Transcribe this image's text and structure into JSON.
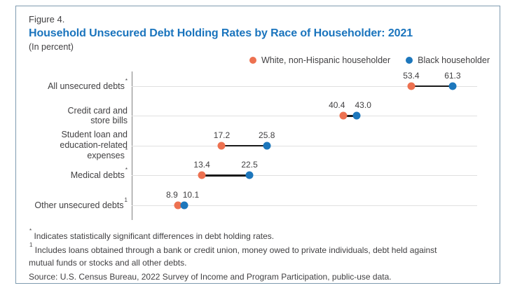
{
  "header": {
    "figure_label": "Figure 4.",
    "title": "Household Unsecured Debt Holding Rates by Race of Householder: 2021",
    "subtitle": "(In percent)"
  },
  "legend": {
    "items": [
      {
        "label": "White, non-Hispanic householder",
        "color": "#ed7150"
      },
      {
        "label": "Black householder",
        "color": "#1d77bc"
      }
    ]
  },
  "chart_data": {
    "type": "dumbbell-dot-plot",
    "title": "Household Unsecured Debt Holding Rates by Race of Householder: 2021",
    "unit": "percent",
    "xlim": [
      0,
      66
    ],
    "grid": "light horizontal line per category",
    "legend_position": "top-right",
    "categories": [
      {
        "lines": [
          "All unsecured debts"
        ],
        "footnote_marker": "*"
      },
      {
        "lines": [
          "Credit card and",
          "store bills"
        ],
        "footnote_marker": ""
      },
      {
        "lines": [
          "Student loan and",
          "education-related",
          "expenses"
        ],
        "footnote_marker": "*"
      },
      {
        "lines": [
          "Medical debts"
        ],
        "footnote_marker": "*"
      },
      {
        "lines": [
          "Other unsecured debts"
        ],
        "footnote_marker": "1"
      }
    ],
    "series": [
      {
        "name": "White, non-Hispanic householder",
        "color": "#ed7150",
        "values": [
          53.4,
          40.4,
          17.2,
          13.4,
          8.9
        ]
      },
      {
        "name": "Black householder",
        "color": "#1d77bc",
        "values": [
          61.3,
          43.0,
          25.8,
          22.5,
          10.1
        ]
      }
    ]
  },
  "footnotes": {
    "items": [
      {
        "marker": "*",
        "text": "Indicates statistically significant differences in debt holding rates."
      },
      {
        "marker": "1",
        "text": "Includes loans obtained through a bank or credit union, money owed to private individuals, debt held against mutual funds or stocks and all other debts."
      }
    ],
    "source": "Source: U.S. Census Bureau, 2022 Survey of Income and Program Participation, public-use data."
  },
  "colors": {
    "title": "#1a74bd",
    "border": "#7e9bb0",
    "axis": "#808080",
    "gridline": "#e0e0e0",
    "connector": "#1a1a1a",
    "text": "#414042"
  }
}
